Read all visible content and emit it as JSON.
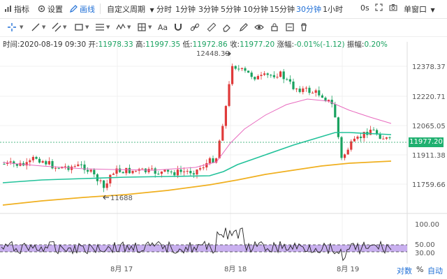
{
  "topbar": {
    "indicator_label": "指标",
    "settings_label": "设置",
    "drawline_label": "画线",
    "custom_period_label": "自定义周期",
    "periods": [
      "分时",
      "1分钟",
      "3分钟",
      "5分钟",
      "10分钟",
      "15分钟",
      "30分钟",
      "1小时"
    ],
    "active_period": "30分钟",
    "interval_value": "0s",
    "window_label": "单窗口"
  },
  "info": {
    "time_label": "时间:",
    "time_value": "2020-08-19 09:30",
    "open_label": "开:",
    "open_value": "11978.33",
    "high_label": "高:",
    "high_value": "11997.35",
    "low_label": "低:",
    "low_value": "11972.86",
    "close_label": "收:",
    "close_value": "11977.20",
    "change_label": "涨幅:",
    "change_value": "-0.01%(-1.12)",
    "amp_label": "振幅:",
    "amp_value": "0.20%"
  },
  "price_axis": [
    "12378.37",
    "12220.71",
    "12065.05",
    "11911.38",
    "11759.66"
  ],
  "current_price": "11977.20",
  "high_marker": "12448.39",
  "low_marker": "11688",
  "osc_axis": [
    "100.00",
    "50.00",
    "30.00"
  ],
  "date_labels": [
    "8月 17",
    "8月 18",
    "8月 19"
  ],
  "bottom": {
    "log_label": "对数",
    "pct_label": "%",
    "auto_label": "自动"
  },
  "colors": {
    "up": "#e03a3a",
    "down": "#1aa260",
    "ma_teal": "#22c29a",
    "ma_pink": "#e86bbf",
    "ma_orange": "#f0b020",
    "accent": "#1f6fd6",
    "band": "#c9b0ef"
  }
}
